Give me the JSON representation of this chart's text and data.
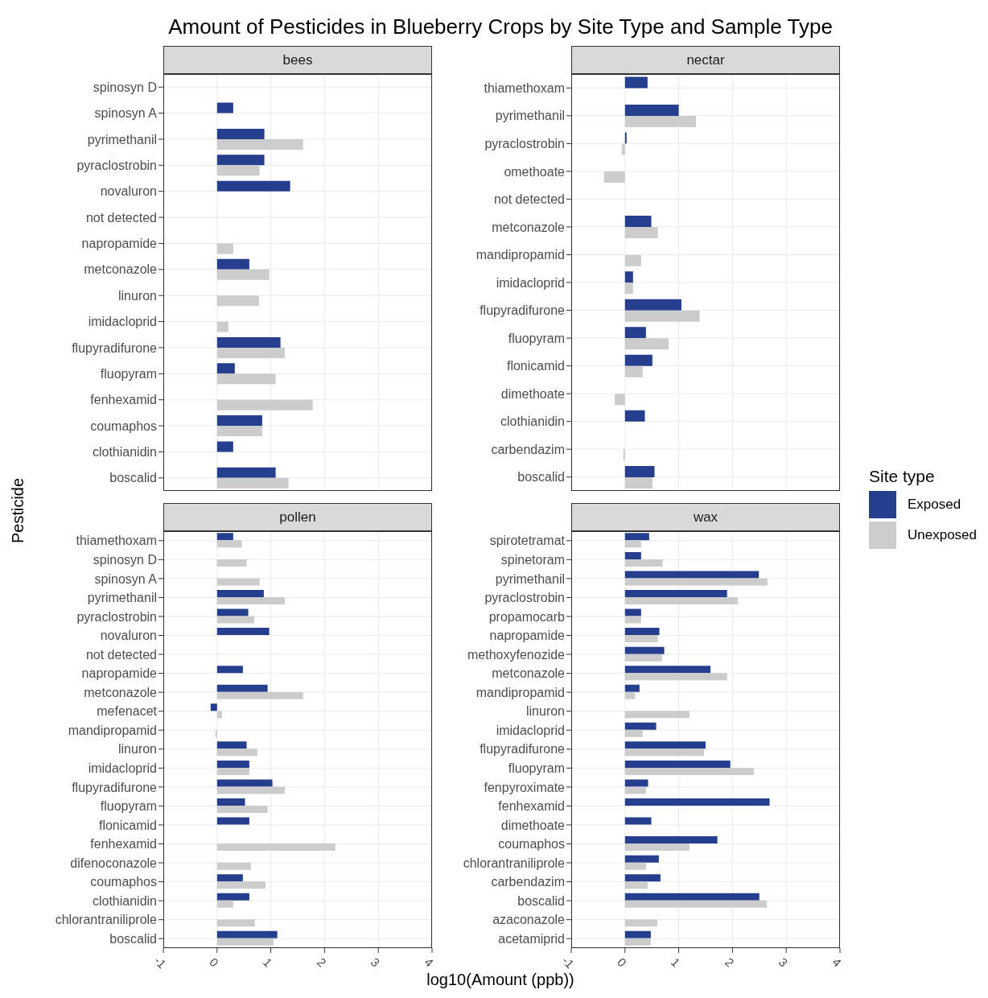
{
  "chart_data": [
    {
      "type": "bar",
      "orientation": "horizontal",
      "title": "bees",
      "annotations": [
        "Amount of Pesticides in Blueberry Crops by Site Type and Sample Type"
      ],
      "ylabel": "Pesticide",
      "legend": "right",
      "legend_title": "Site type",
      "xlim": [
        -1,
        4
      ],
      "xticks": [
        -1,
        0,
        1,
        2,
        3,
        4
      ],
      "grid": true,
      "tick_labels": "y",
      "categories": [
        "spinosyn D",
        "spinosyn A",
        "pyrimethanil",
        "pyraclostrobin",
        "novaluron",
        "not detected",
        "napropamide",
        "metconazole",
        "linuron",
        "imidacloprid",
        "flupyradifurone",
        "fluopyram",
        "fenhexamid",
        "coumaphos",
        "clothianidin",
        "boscalid"
      ],
      "series": [
        {
          "name": "Exposed",
          "color": "#253f8e",
          "values": [
            null,
            0.3,
            0.88,
            0.88,
            1.36,
            null,
            null,
            0.6,
            null,
            null,
            1.18,
            0.33,
            null,
            0.84,
            0.3,
            1.09
          ]
        },
        {
          "name": "Unexposed",
          "color": "#cccccc",
          "values": [
            null,
            null,
            1.6,
            0.79,
            null,
            null,
            0.3,
            0.97,
            0.78,
            0.21,
            1.26,
            1.09,
            1.78,
            0.84,
            null,
            1.33
          ]
        }
      ]
    },
    {
      "type": "bar",
      "orientation": "horizontal",
      "title": "nectar",
      "xlim": [
        -1,
        4
      ],
      "xticks": [
        -1,
        0,
        1,
        2,
        3,
        4
      ],
      "grid": true,
      "tick_labels": "y",
      "categories": [
        "thiamethoxam",
        "pyrimethanil",
        "pyraclostrobin",
        "omethoate",
        "not detected",
        "metconazole",
        "mandipropamid",
        "imidacloprid",
        "flupyradifurone",
        "fluopyram",
        "flonicamid",
        "dimethoate",
        "clothianidin",
        "carbendazim",
        "boscalid"
      ],
      "series": [
        {
          "color": "#253f8e",
          "values": [
            0.42,
            1.0,
            0.03,
            null,
            null,
            0.49,
            null,
            0.15,
            1.05,
            0.39,
            0.51,
            null,
            0.37,
            null,
            0.55
          ]
        },
        {
          "color": "#cccccc",
          "values": [
            null,
            1.32,
            -0.06,
            -0.39,
            null,
            0.61,
            0.3,
            0.15,
            1.39,
            0.81,
            0.33,
            -0.19,
            null,
            -0.03,
            0.51
          ]
        }
      ]
    },
    {
      "type": "bar",
      "orientation": "horizontal",
      "title": "pollen",
      "xlabel": "log10(Amount (ppb))",
      "xlim": [
        -1,
        4
      ],
      "xticks": [
        -1,
        0,
        1,
        2,
        3,
        4
      ],
      "grid": true,
      "categories": [
        "thiamethoxam",
        "spinosyn D",
        "spinosyn A",
        "pyrimethanil",
        "pyraclostrobin",
        "novaluron",
        "not detected",
        "napropamide",
        "metconazole",
        "mefenacet",
        "mandipropamid",
        "linuron",
        "imidacloprid",
        "flupyradifurone",
        "fluopyram",
        "flonicamid",
        "fenhexamid",
        "difenoconazole",
        "coumaphos",
        "clothianidin",
        "chlorantraniliprole",
        "boscalid"
      ],
      "series": [
        {
          "color": "#253f8e",
          "values": [
            0.3,
            null,
            null,
            0.87,
            0.58,
            0.97,
            null,
            0.48,
            0.94,
            -0.12,
            null,
            0.55,
            0.6,
            1.03,
            0.52,
            0.6,
            null,
            null,
            0.48,
            0.6,
            null,
            1.12
          ]
        },
        {
          "color": "#cccccc",
          "values": [
            0.46,
            0.55,
            0.79,
            1.26,
            0.69,
            null,
            null,
            null,
            1.6,
            0.09,
            -0.03,
            0.75,
            0.6,
            1.26,
            0.94,
            null,
            2.2,
            0.63,
            0.9,
            0.3,
            0.7,
            1.05
          ]
        }
      ]
    },
    {
      "type": "bar",
      "orientation": "horizontal",
      "title": "wax",
      "xlim": [
        -1,
        4
      ],
      "xticks": [
        -1,
        0,
        1,
        2,
        3,
        4
      ],
      "grid": true,
      "categories": [
        "spirotetramat",
        "spinetoram",
        "pyrimethanil",
        "pyraclostrobin",
        "propamocarb",
        "napropamide",
        "methoxyfenozide",
        "metconazole",
        "mandipropamid",
        "linuron",
        "imidacloprid",
        "flupyradifurone",
        "fluopyram",
        "fenpyroximate",
        "fenhexamid",
        "dimethoate",
        "coumaphos",
        "chlorantraniliprole",
        "carbendazim",
        "boscalid",
        "azaconazole",
        "acetamiprid"
      ],
      "series": [
        {
          "color": "#253f8e",
          "values": [
            0.45,
            0.3,
            2.49,
            1.9,
            0.3,
            0.64,
            0.73,
            1.59,
            0.27,
            null,
            0.58,
            1.5,
            1.96,
            0.43,
            2.69,
            0.49,
            1.72,
            0.63,
            0.66,
            2.5,
            null,
            0.48
          ]
        },
        {
          "color": "#cccccc",
          "values": [
            0.3,
            0.7,
            2.65,
            2.1,
            0.3,
            0.61,
            0.69,
            1.9,
            0.19,
            1.2,
            0.33,
            1.47,
            2.4,
            0.39,
            null,
            null,
            1.2,
            0.39,
            0.42,
            2.64,
            0.6,
            0.48
          ]
        }
      ]
    }
  ]
}
